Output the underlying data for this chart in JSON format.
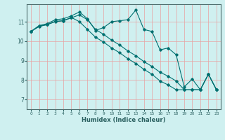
{
  "xlabel": "Humidex (Indice chaleur)",
  "x_ticks": [
    0,
    1,
    2,
    3,
    4,
    5,
    6,
    7,
    8,
    9,
    10,
    11,
    12,
    13,
    14,
    15,
    16,
    17,
    18,
    19,
    20,
    21,
    22,
    23
  ],
  "y_ticks": [
    7,
    8,
    9,
    10,
    11
  ],
  "ylim": [
    6.5,
    11.9
  ],
  "xlim": [
    -0.5,
    23.5
  ],
  "bg_color": "#cff0f0",
  "grid_color": "#e8a0a0",
  "line_color": "#007070",
  "y_main": [
    10.5,
    10.8,
    10.9,
    11.1,
    11.15,
    11.3,
    11.5,
    11.15,
    10.55,
    10.7,
    11.0,
    11.05,
    11.1,
    11.6,
    10.6,
    10.5,
    9.55,
    9.65,
    9.3,
    7.65,
    8.05,
    7.5,
    8.3,
    7.5
  ],
  "y_trend1": [
    10.5,
    10.75,
    10.85,
    11.0,
    11.05,
    11.2,
    11.35,
    11.1,
    10.6,
    10.35,
    10.05,
    9.8,
    9.5,
    9.25,
    8.95,
    8.7,
    8.4,
    8.2,
    7.95,
    7.5,
    7.5,
    7.5,
    8.3,
    7.5
  ],
  "y_trend2": [
    10.5,
    10.78,
    10.85,
    11.02,
    11.05,
    11.22,
    11.0,
    10.6,
    10.2,
    9.95,
    9.65,
    9.4,
    9.1,
    8.85,
    8.55,
    8.3,
    7.95,
    7.75,
    7.5,
    7.5,
    7.5,
    7.5,
    8.3,
    7.5
  ]
}
